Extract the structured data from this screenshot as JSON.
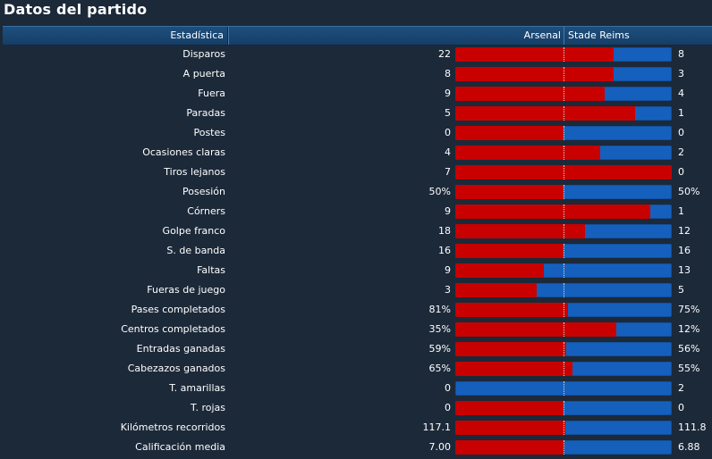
{
  "title": "Datos del partido",
  "header": {
    "stat_col": "Estadística",
    "home_team": "Arsenal",
    "away_team": "Stade Reims"
  },
  "colors": {
    "home": "#c80000",
    "away": "#1560bd",
    "header": "#1d4f7f",
    "background": "#1c2939"
  },
  "stats": [
    {
      "label": "Disparos",
      "home": "22",
      "away": "8",
      "home_share": 0.73
    },
    {
      "label": "A puerta",
      "home": "8",
      "away": "3",
      "home_share": 0.73
    },
    {
      "label": "Fuera",
      "home": "9",
      "away": "4",
      "home_share": 0.69
    },
    {
      "label": "Paradas",
      "home": "5",
      "away": "1",
      "home_share": 0.83
    },
    {
      "label": "Postes",
      "home": "0",
      "away": "0",
      "home_share": 0.5
    },
    {
      "label": "Ocasiones claras",
      "home": "4",
      "away": "2",
      "home_share": 0.67
    },
    {
      "label": "Tiros lejanos",
      "home": "7",
      "away": "0",
      "home_share": 1.0
    },
    {
      "label": "Posesión",
      "home": "50%",
      "away": "50%",
      "home_share": 0.5
    },
    {
      "label": "Córners",
      "home": "9",
      "away": "1",
      "home_share": 0.9
    },
    {
      "label": "Golpe franco",
      "home": "18",
      "away": "12",
      "home_share": 0.6
    },
    {
      "label": "S. de banda",
      "home": "16",
      "away": "16",
      "home_share": 0.5
    },
    {
      "label": "Faltas",
      "home": "9",
      "away": "13",
      "home_share": 0.41
    },
    {
      "label": "Fueras de juego",
      "home": "3",
      "away": "5",
      "home_share": 0.375
    },
    {
      "label": "Pases completados",
      "home": "81%",
      "away": "75%",
      "home_share": 0.52
    },
    {
      "label": "Centros completados",
      "home": "35%",
      "away": "12%",
      "home_share": 0.745
    },
    {
      "label": "Entradas ganadas",
      "home": "59%",
      "away": "56%",
      "home_share": 0.513
    },
    {
      "label": "Cabezazos ganados",
      "home": "65%",
      "away": "55%",
      "home_share": 0.542
    },
    {
      "label": "T. amarillas",
      "home": "0",
      "away": "2",
      "home_share": 0.0
    },
    {
      "label": "T. rojas",
      "home": "0",
      "away": "0",
      "home_share": 0.5
    },
    {
      "label": "Kilómetros recorridos",
      "home": "117.1",
      "away": "111.8",
      "home_share": 0.51
    },
    {
      "label": "Calificación media",
      "home": "7.00",
      "away": "6.88",
      "home_share": 0.504
    }
  ]
}
